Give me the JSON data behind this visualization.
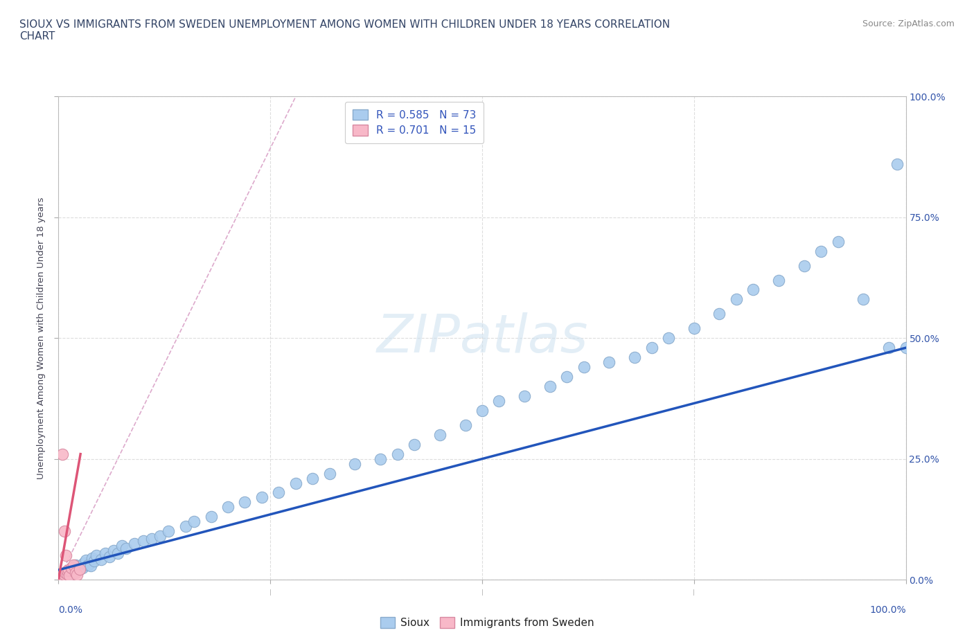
{
  "title": "SIOUX VS IMMIGRANTS FROM SWEDEN UNEMPLOYMENT AMONG WOMEN WITH CHILDREN UNDER 18 YEARS CORRELATION\nCHART",
  "source_text": "Source: ZipAtlas.com",
  "ylabel": "Unemployment Among Women with Children Under 18 years",
  "xlim": [
    0,
    1.0
  ],
  "ylim": [
    0,
    1.0
  ],
  "yticks": [
    0.0,
    0.25,
    0.5,
    0.75,
    1.0
  ],
  "yticklabels_right": [
    "0.0%",
    "25.0%",
    "50.0%",
    "75.0%",
    "100.0%"
  ],
  "xticklabels_bottom_ends": [
    "0.0%",
    "100.0%"
  ],
  "watermark": "ZIPatlas",
  "legend_labels": [
    "Sioux",
    "Immigrants from Sweden"
  ],
  "sioux_color": "#aaccee",
  "sweden_color": "#f8b8c8",
  "sioux_edge": "#88aacc",
  "sweden_edge": "#d888a0",
  "regression_blue": "#2255bb",
  "regression_pink": "#dd5577",
  "ref_line_color": "#ddaacc",
  "R_sioux": 0.585,
  "N_sioux": 73,
  "R_sweden": 0.701,
  "N_sweden": 15,
  "sioux_x": [
    0.005,
    0.007,
    0.008,
    0.01,
    0.01,
    0.012,
    0.013,
    0.015,
    0.015,
    0.017,
    0.018,
    0.02,
    0.02,
    0.022,
    0.025,
    0.028,
    0.03,
    0.032,
    0.035,
    0.038,
    0.04,
    0.042,
    0.045,
    0.05,
    0.055,
    0.06,
    0.065,
    0.07,
    0.075,
    0.08,
    0.09,
    0.1,
    0.11,
    0.12,
    0.13,
    0.15,
    0.16,
    0.18,
    0.2,
    0.22,
    0.24,
    0.26,
    0.28,
    0.3,
    0.32,
    0.35,
    0.38,
    0.4,
    0.42,
    0.45,
    0.48,
    0.5,
    0.52,
    0.55,
    0.58,
    0.6,
    0.62,
    0.65,
    0.68,
    0.7,
    0.72,
    0.75,
    0.78,
    0.8,
    0.82,
    0.85,
    0.88,
    0.9,
    0.92,
    0.95,
    0.98,
    0.99,
    1.0
  ],
  "sioux_y": [
    0.005,
    0.01,
    0.008,
    0.012,
    0.015,
    0.01,
    0.018,
    0.012,
    0.02,
    0.015,
    0.025,
    0.02,
    0.03,
    0.018,
    0.022,
    0.025,
    0.035,
    0.04,
    0.03,
    0.028,
    0.045,
    0.038,
    0.05,
    0.042,
    0.055,
    0.048,
    0.06,
    0.055,
    0.07,
    0.065,
    0.075,
    0.08,
    0.085,
    0.09,
    0.1,
    0.11,
    0.12,
    0.13,
    0.15,
    0.16,
    0.17,
    0.18,
    0.2,
    0.21,
    0.22,
    0.24,
    0.25,
    0.26,
    0.28,
    0.3,
    0.32,
    0.35,
    0.37,
    0.38,
    0.4,
    0.42,
    0.44,
    0.45,
    0.46,
    0.48,
    0.5,
    0.52,
    0.55,
    0.58,
    0.6,
    0.62,
    0.65,
    0.68,
    0.7,
    0.58,
    0.48,
    0.86,
    0.48
  ],
  "sweden_x": [
    0.005,
    0.007,
    0.008,
    0.01,
    0.01,
    0.012,
    0.013,
    0.015,
    0.018,
    0.02,
    0.022,
    0.025,
    0.005,
    0.007,
    0.009
  ],
  "sweden_y": [
    0.005,
    0.01,
    0.015,
    0.012,
    0.018,
    0.02,
    0.008,
    0.025,
    0.03,
    0.015,
    0.01,
    0.022,
    0.26,
    0.1,
    0.05
  ],
  "slope_sioux": 0.46,
  "intercept_sioux": 0.02,
  "slope_sweden": 10.0,
  "intercept_sweden": 0.0,
  "ref_line_x": [
    0.0,
    0.28
  ],
  "ref_line_y": [
    0.0,
    1.0
  ]
}
